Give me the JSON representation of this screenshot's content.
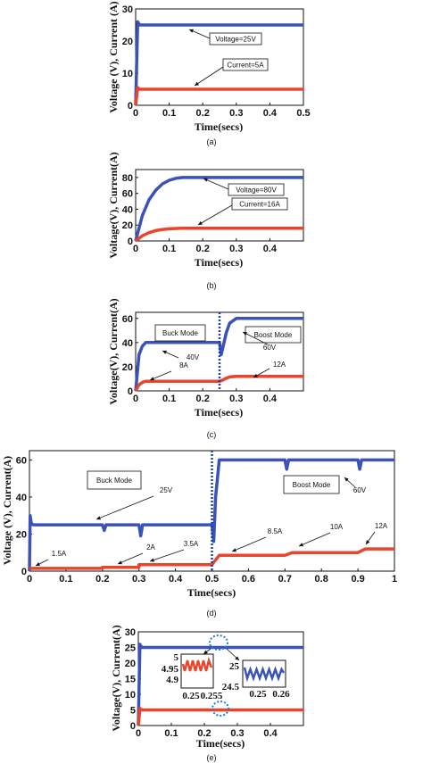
{
  "chart_data": [
    {
      "caption": "(a)",
      "type": "line",
      "xlabel": "Time(secs)",
      "ylabel": "Voltage (V), Current (A)",
      "xlim": [
        0,
        0.5
      ],
      "ylim": [
        0,
        30
      ],
      "xticks": [
        "0",
        "0.1",
        "0.2",
        "0.3",
        "0.4",
        "0.5"
      ],
      "yticks": [
        "0",
        "10",
        "20",
        "30"
      ],
      "series": [
        {
          "color": "#3b52b8",
          "x": [
            0,
            0.006,
            0.012,
            0.5
          ],
          "y": [
            0,
            26,
            25,
            25
          ]
        },
        {
          "color": "#e8452c",
          "x": [
            0,
            0.006,
            0.012,
            0.5
          ],
          "y": [
            0,
            5.5,
            5,
            5
          ]
        }
      ],
      "annotations": [
        "Voltage=25V",
        "Current=5A"
      ]
    },
    {
      "caption": "(b)",
      "type": "line",
      "xlabel": "Time(secs)",
      "ylabel": "Voltage(V), Current(A)",
      "xlim": [
        0,
        0.5
      ],
      "ylim": [
        0,
        90
      ],
      "xticks": [
        "0",
        "0.1",
        "0.2",
        "0.3",
        "0.4"
      ],
      "yticks": [
        "0",
        "20",
        "40",
        "60",
        "80"
      ],
      "series": [
        {
          "color": "#3b52b8",
          "x": [
            0,
            0.02,
            0.04,
            0.06,
            0.08,
            0.1,
            0.12,
            0.14,
            0.2,
            0.5
          ],
          "y": [
            0,
            32,
            52,
            64,
            72,
            76.5,
            79,
            80,
            80,
            80
          ]
        },
        {
          "color": "#e8452c",
          "x": [
            0,
            0.02,
            0.04,
            0.06,
            0.08,
            0.1,
            0.12,
            0.14,
            0.2,
            0.5
          ],
          "y": [
            0,
            6.5,
            10.5,
            13,
            14.5,
            15.3,
            15.8,
            16,
            16,
            16
          ]
        }
      ],
      "annotations": [
        "Voltage=80V",
        "Current=16A"
      ]
    },
    {
      "caption": "(c)",
      "type": "line",
      "xlabel": "Time(secs)",
      "ylabel": "Voltage(V), Current(A)",
      "xlim": [
        0,
        0.5
      ],
      "ylim": [
        0,
        65
      ],
      "xticks": [
        "0",
        "0.1",
        "0.2",
        "0.3",
        "0.4"
      ],
      "yticks": [
        "0",
        "20",
        "40",
        "60"
      ],
      "series": [
        {
          "color": "#3b52b8",
          "x": [
            0,
            0.01,
            0.02,
            0.03,
            0.05,
            0.25,
            0.255,
            0.26,
            0.27,
            0.28,
            0.3,
            0.5
          ],
          "y": [
            0,
            30,
            37,
            40,
            40,
            40,
            30,
            36,
            48,
            56,
            60,
            60
          ]
        },
        {
          "color": "#e8452c",
          "x": [
            0,
            0.01,
            0.02,
            0.03,
            0.05,
            0.25,
            0.26,
            0.27,
            0.28,
            0.3,
            0.5
          ],
          "y": [
            0,
            5,
            7,
            8,
            8,
            8,
            9,
            10.5,
            11.5,
            12,
            12
          ]
        }
      ],
      "annotations": [
        "Buck Mode",
        "Boost Mode",
        "40V",
        "60V",
        "8A",
        "12A"
      ]
    },
    {
      "caption": "(d)",
      "type": "line",
      "xlabel": "Time(secs)",
      "ylabel": "Voltage (V), Current(A)",
      "xlim": [
        0,
        1
      ],
      "ylim": [
        0,
        65
      ],
      "xticks": [
        "0",
        "0.1",
        "0.2",
        "0.3",
        "0.4",
        "0.5",
        "0.6",
        "0.7",
        "0.8",
        "0.9",
        "1"
      ],
      "yticks": [
        "0",
        "20",
        "40",
        "60"
      ],
      "series": [
        {
          "color": "#3b52b8",
          "x": [
            0,
            0.002,
            0.005,
            0.01,
            0.2,
            0.205,
            0.21,
            0.3,
            0.305,
            0.31,
            0.5,
            0.505,
            0.51,
            0.52,
            0.7,
            0.705,
            0.71,
            0.9,
            0.905,
            0.91,
            1
          ],
          "y": [
            0,
            30,
            26,
            25,
            25,
            22,
            25,
            25,
            19,
            25,
            25,
            16,
            40,
            60,
            60,
            55,
            60,
            60,
            55,
            60,
            60
          ]
        },
        {
          "color": "#e8452c",
          "x": [
            0,
            0.2,
            0.2,
            0.3,
            0.3,
            0.5,
            0.5,
            0.52,
            0.7,
            0.72,
            0.9,
            0.92,
            1
          ],
          "y": [
            1.5,
            1.5,
            2,
            2,
            3.5,
            3.5,
            3.5,
            8.5,
            8.5,
            10,
            10,
            12,
            12
          ]
        }
      ],
      "annotations": [
        "Buck Mode",
        "Boost Mode",
        "25V",
        "60V",
        "1.5A",
        "2A",
        "3.5A",
        "8.5A",
        "10A",
        "12A"
      ]
    },
    {
      "caption": "(e)",
      "type": "line",
      "xlabel": "Time(secs)",
      "ylabel": "Voltage(V), Current(A)",
      "xlim": [
        0,
        0.5
      ],
      "ylim": [
        0,
        30
      ],
      "xticks": [
        "0",
        "0.1",
        "0.2",
        "0.3",
        "0.4"
      ],
      "yticks": [
        "0",
        "5",
        "10",
        "15",
        "20",
        "25",
        "30"
      ],
      "series": [
        {
          "color": "#3b52b8",
          "x": [
            0,
            0.005,
            0.01,
            0.5
          ],
          "y": [
            0,
            26,
            25,
            25
          ]
        },
        {
          "color": "#e8452c",
          "x": [
            0,
            0.005,
            0.01,
            0.5
          ],
          "y": [
            0,
            5.5,
            5,
            5
          ]
        }
      ],
      "insets": [
        {
          "yticks": [
            "5",
            "4.95",
            "4.9"
          ],
          "xticks": [
            "0.25",
            "0.255"
          ],
          "color": "#e8452c"
        },
        {
          "yticks": [
            "25",
            "24.5"
          ],
          "xticks": [
            "0.25",
            "0.26"
          ],
          "color": "#3b52b8"
        }
      ]
    }
  ]
}
